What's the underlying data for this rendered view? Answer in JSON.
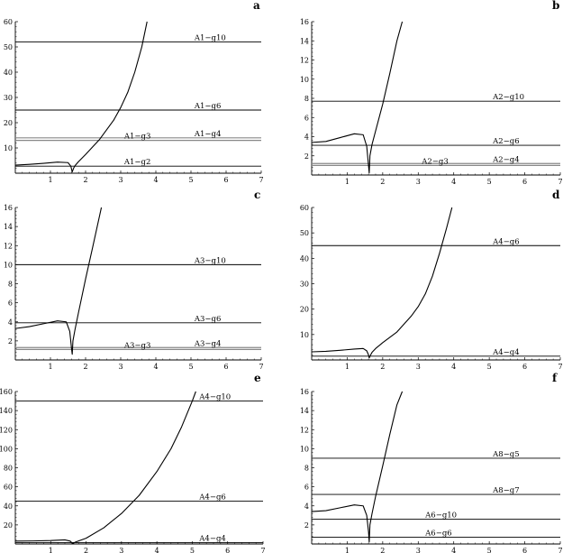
{
  "chart_data": [
    {
      "type": "line",
      "panel_label": "a",
      "xlim": [
        0,
        7
      ],
      "ylim": [
        0,
        60
      ],
      "x_ticks": [
        "1",
        "2",
        "3",
        "4",
        "5",
        "6",
        "7"
      ],
      "y_ticks": [
        "10",
        "20",
        "30",
        "40",
        "50",
        "60"
      ],
      "y_tick_values": [
        10,
        20,
        30,
        40,
        50,
        60
      ],
      "curve": {
        "x": [
          0,
          0.4,
          0.8,
          1.2,
          1.5,
          1.58,
          1.62,
          1.66,
          1.7,
          1.8,
          2.0,
          2.4,
          2.8,
          3.0,
          3.2,
          3.4,
          3.6,
          3.75
        ],
        "y": [
          3.2,
          3.5,
          3.9,
          4.4,
          4.2,
          2.8,
          0.5,
          2.0,
          3.0,
          4.6,
          7.4,
          13.4,
          21.0,
          26.0,
          32.0,
          40.0,
          50.0,
          60.0
        ]
      },
      "lines": [
        {
          "label": "A1−g10",
          "y": 52,
          "gray": false
        },
        {
          "label": "A1−g6",
          "y": 25,
          "gray": false
        },
        {
          "label": "A1−g4",
          "y": 14,
          "gray": true
        },
        {
          "label": "A1−g3",
          "y": 13,
          "gray": true
        },
        {
          "label": "A1−g2",
          "y": 2.8,
          "gray": false
        }
      ]
    },
    {
      "type": "line",
      "panel_label": "b",
      "xlim": [
        0,
        7
      ],
      "ylim": [
        0,
        16
      ],
      "x_ticks": [
        "1",
        "2",
        "3",
        "4",
        "5",
        "6",
        "7"
      ],
      "y_ticks": [
        "2",
        "4",
        "6",
        "8",
        "10",
        "12",
        "14",
        "16"
      ],
      "y_tick_values": [
        2,
        4,
        6,
        8,
        10,
        12,
        14,
        16
      ],
      "curve": {
        "x": [
          0,
          0.4,
          0.8,
          1.2,
          1.45,
          1.55,
          1.6,
          1.62,
          1.64,
          1.7,
          1.8,
          2.0,
          2.2,
          2.4,
          2.55
        ],
        "y": [
          3.4,
          3.5,
          3.9,
          4.3,
          4.2,
          3.0,
          1.0,
          0.2,
          2.0,
          3.2,
          4.6,
          7.4,
          10.6,
          14.0,
          16.0
        ]
      },
      "lines": [
        {
          "label": "A2−g10",
          "y": 7.7,
          "gray": false
        },
        {
          "label": "A2−g6",
          "y": 3.1,
          "gray": false
        },
        {
          "label": "A2−g4",
          "y": 1.2,
          "gray": true
        },
        {
          "label": "A2−g3",
          "y": 1.0,
          "gray": true
        }
      ]
    },
    {
      "type": "line",
      "panel_label": "c",
      "xlim": [
        0,
        7
      ],
      "ylim": [
        0,
        16
      ],
      "x_ticks": [
        "1",
        "2",
        "3",
        "4",
        "5",
        "6",
        "7"
      ],
      "y_ticks": [
        "2",
        "4",
        "6",
        "8",
        "10",
        "12",
        "14",
        "16"
      ],
      "y_tick_values": [
        2,
        4,
        6,
        8,
        10,
        12,
        14,
        16
      ],
      "curve": {
        "x": [
          0,
          0.4,
          0.8,
          1.2,
          1.45,
          1.55,
          1.6,
          1.62,
          1.64,
          1.7,
          1.8,
          2.0,
          2.2,
          2.45
        ],
        "y": [
          3.3,
          3.5,
          3.8,
          4.1,
          4.0,
          3.0,
          1.2,
          0.6,
          2.0,
          3.2,
          5.0,
          8.5,
          11.8,
          16.0
        ]
      },
      "lines": [
        {
          "label": "A3−g10",
          "y": 10.0,
          "gray": false
        },
        {
          "label": "A3−g6",
          "y": 3.9,
          "gray": false
        },
        {
          "label": "A3−g4",
          "y": 1.3,
          "gray": true
        },
        {
          "label": "A3−g3",
          "y": 1.1,
          "gray": true
        }
      ]
    },
    {
      "type": "line",
      "panel_label": "d",
      "xlim": [
        0,
        7
      ],
      "ylim": [
        0,
        60
      ],
      "x_ticks": [
        "1",
        "2",
        "3",
        "4",
        "5",
        "6",
        "7"
      ],
      "y_ticks": [
        "10",
        "20",
        "30",
        "40",
        "50",
        "60"
      ],
      "y_tick_values": [
        10,
        20,
        30,
        40,
        50,
        60
      ],
      "curve": {
        "x": [
          0,
          0.4,
          0.8,
          1.2,
          1.45,
          1.55,
          1.6,
          1.62,
          1.66,
          1.7,
          1.8,
          2.0,
          2.4,
          2.8,
          3.0,
          3.2,
          3.4,
          3.6,
          3.8,
          3.95
        ],
        "y": [
          3.2,
          3.4,
          3.8,
          4.3,
          4.5,
          3.6,
          2.0,
          0.8,
          2.0,
          3.0,
          4.5,
          6.8,
          11.0,
          17.2,
          21.0,
          26.0,
          33.0,
          42.0,
          52.0,
          60.0
        ]
      },
      "lines": [
        {
          "label": "A4−g6",
          "y": 45,
          "gray": false
        },
        {
          "label": "A4−g4",
          "y": 1.5,
          "gray": false
        }
      ]
    },
    {
      "type": "line",
      "panel_label": "e",
      "xlim": [
        0,
        7
      ],
      "ylim": [
        0,
        160
      ],
      "x_ticks": [
        "1",
        "2",
        "3",
        "4",
        "5",
        "6",
        "7"
      ],
      "y_ticks": [
        "20",
        "40",
        "60",
        "80",
        "100",
        "120",
        "140",
        "160"
      ],
      "y_tick_values": [
        20,
        40,
        60,
        80,
        100,
        120,
        140,
        160
      ],
      "curve": {
        "x": [
          0,
          0.5,
          1.0,
          1.4,
          1.55,
          1.62,
          1.7,
          2.0,
          2.5,
          3.0,
          3.5,
          4.0,
          4.4,
          4.7,
          5.0,
          5.1
        ],
        "y": [
          3,
          3.2,
          3.6,
          4.3,
          3.0,
          0.5,
          2.0,
          6.0,
          17.0,
          32.0,
          51.0,
          76.0,
          100.0,
          123.0,
          150.0,
          160.0
        ]
      },
      "lines": [
        {
          "label": "A4−g10",
          "y": 150,
          "gray": false
        },
        {
          "label": "A4−g6",
          "y": 45,
          "gray": false
        },
        {
          "label": "A4−g4",
          "y": 1.5,
          "gray": false
        }
      ]
    },
    {
      "type": "line",
      "panel_label": "f",
      "xlim": [
        0,
        7
      ],
      "ylim": [
        0,
        16
      ],
      "x_ticks": [
        "1",
        "2",
        "3",
        "4",
        "5",
        "6",
        "7"
      ],
      "y_ticks": [
        "2",
        "4",
        "6",
        "8",
        "10",
        "12",
        "14",
        "16"
      ],
      "y_tick_values": [
        2,
        4,
        6,
        8,
        10,
        12,
        14,
        16
      ],
      "curve": {
        "x": [
          0,
          0.4,
          0.8,
          1.2,
          1.45,
          1.55,
          1.6,
          1.62,
          1.64,
          1.7,
          1.8,
          2.0,
          2.2,
          2.4,
          2.55
        ],
        "y": [
          3.4,
          3.5,
          3.8,
          4.1,
          4.0,
          3.0,
          1.3,
          0.2,
          2.0,
          3.2,
          5.0,
          8.2,
          11.5,
          14.6,
          16.0
        ]
      },
      "lines": [
        {
          "label": "A8−g5",
          "y": 9.0,
          "gray": false
        },
        {
          "label": "A8−g7",
          "y": 5.2,
          "gray": false
        },
        {
          "label": "A6−g10",
          "y": 2.6,
          "gray": false
        },
        {
          "label": "A6−g6",
          "y": 0.7,
          "gray": false
        }
      ]
    }
  ]
}
